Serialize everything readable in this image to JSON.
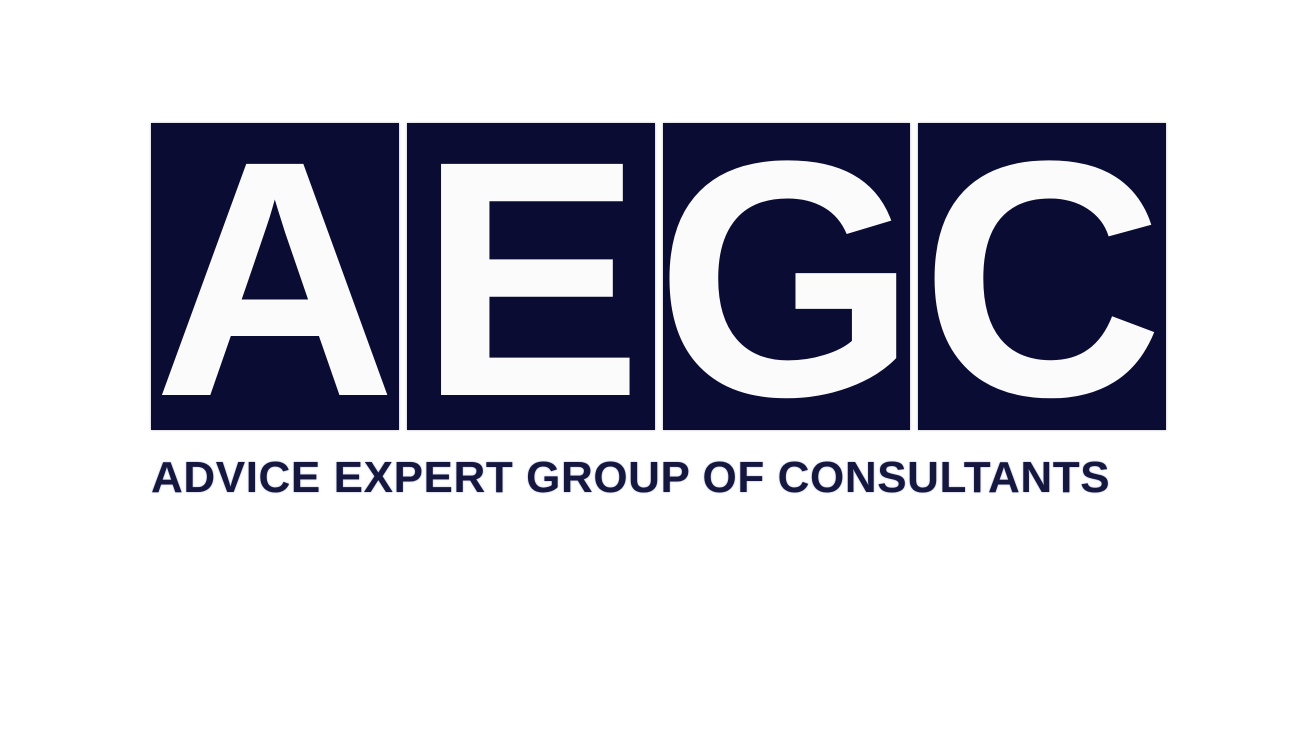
{
  "logo": {
    "tiles": [
      {
        "letter": "A"
      },
      {
        "letter": "E"
      },
      {
        "letter": "G"
      },
      {
        "letter": "C"
      }
    ],
    "tagline": "ADVICE EXPERT GROUP OF CONSULTANTS"
  },
  "colors": {
    "tile_background": "#0b0c33",
    "letter": "#fbfbfb",
    "tagline": "#16173e",
    "page_background": "#ffffff"
  }
}
